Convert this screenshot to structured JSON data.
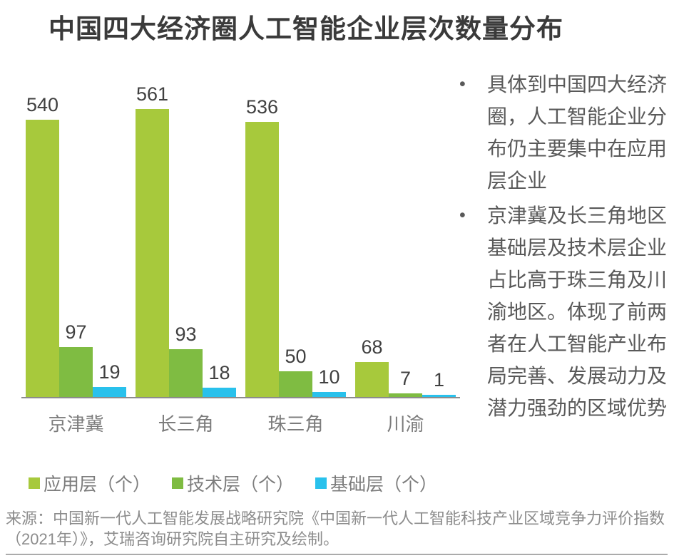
{
  "title": "中国四大经济圈人工智能企业层次数量分布",
  "chart_data": {
    "type": "bar",
    "categories": [
      "京津冀",
      "长三角",
      "珠三角",
      "川渝"
    ],
    "series": [
      {
        "name": "应用层（个）",
        "color": "#a7c93c",
        "values": [
          540,
          561,
          536,
          68
        ]
      },
      {
        "name": "技术层（个）",
        "color": "#7fbc42",
        "values": [
          97,
          93,
          50,
          7
        ]
      },
      {
        "name": "基础层（个）",
        "color": "#29c1ec",
        "values": [
          19,
          18,
          10,
          1
        ]
      }
    ],
    "title": "中国四大经济圈人工智能企业层次数量分布",
    "xlabel": "",
    "ylabel": "",
    "ylim": [
      0,
      600
    ],
    "grid": false,
    "legend_position": "bottom",
    "value_labels": true,
    "axis_line_color": "#8c8c8c"
  },
  "side_panel": {
    "bullet_marker": "•",
    "bullets": [
      "具体到中国四大经济圈，人工智能企业分布仍主要集中在应用层企业",
      "京津冀及长三角地区基础层及技术层企业占比高于珠三角及川渝地区。体现了前两者在人工智能产业布局完善、发展动力及潜力强劲的区域优势"
    ]
  },
  "source": "来源：中国新一代人工智能发展战略研究院《中国新一代人工智能科技产业区域竞争力评价指数（2021年）》，艾瑞咨询研究院自主研究及绘制。",
  "colors": {
    "title_text": "#3a3a3a",
    "value_label_text": "#404040",
    "category_text": "#7c7c7c",
    "legend_text": "#7c7c7c",
    "side_text": "#595959",
    "source_text": "#8c8c8c",
    "axis_line": "#8c8c8c",
    "bottom_rule": "#ababab"
  }
}
